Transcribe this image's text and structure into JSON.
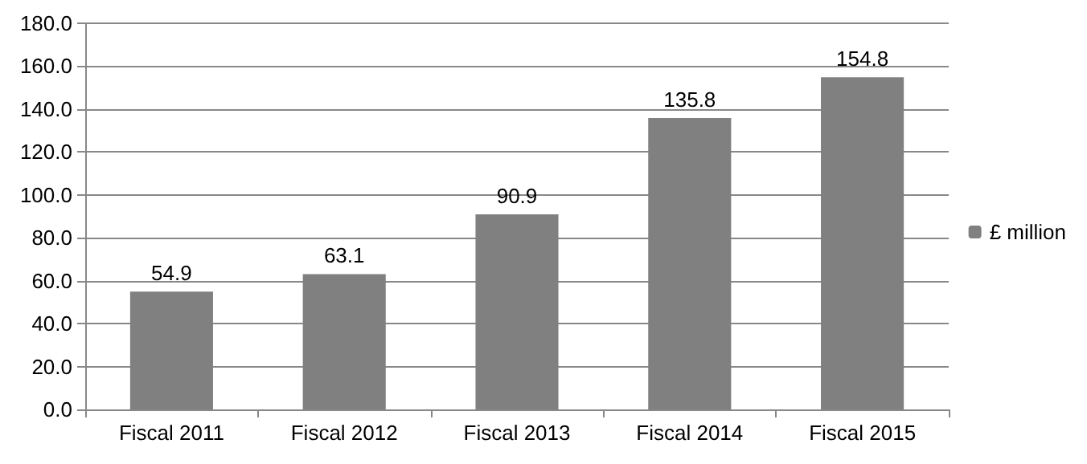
{
  "chart_data": {
    "type": "bar",
    "categories": [
      "Fiscal 2011",
      "Fiscal 2012",
      "Fiscal 2013",
      "Fiscal 2014",
      "Fiscal 2015"
    ],
    "series": [
      {
        "name": "£ million",
        "color": "#808080",
        "values": [
          54.9,
          63.1,
          90.9,
          135.8,
          154.8
        ]
      }
    ],
    "ylim": [
      0,
      180
    ],
    "yticks": [
      {
        "value": 0,
        "label": "0.0"
      },
      {
        "value": 20,
        "label": "20.0"
      },
      {
        "value": 40,
        "label": "40.0"
      },
      {
        "value": 60,
        "label": "60.0"
      },
      {
        "value": 80,
        "label": "80.0"
      },
      {
        "value": 100,
        "label": "100.0"
      },
      {
        "value": 120,
        "label": "120.0"
      },
      {
        "value": 140,
        "label": "140.0"
      },
      {
        "value": 160,
        "label": "160.0"
      },
      {
        "value": 180,
        "label": "180.0"
      }
    ],
    "grid": "y",
    "legend": "right",
    "data_labels": true
  }
}
